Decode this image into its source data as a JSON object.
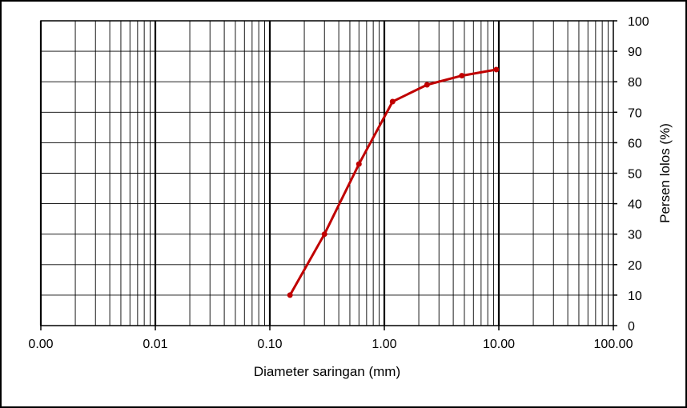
{
  "chart_data": {
    "type": "line",
    "title": "",
    "xlabel": "Diameter saringan (mm)",
    "ylabel": "Persen lolos (%)",
    "x_scale": "log",
    "xlim": [
      0.001,
      100
    ],
    "ylim": [
      0,
      100
    ],
    "x_tick_labels": [
      "0.00",
      "0.01",
      "0.10",
      "1.00",
      "10.00",
      "100.00"
    ],
    "y_tick_labels": [
      "0",
      "10",
      "20",
      "30",
      "40",
      "50",
      "60",
      "70",
      "80",
      "90",
      "100"
    ],
    "y_axis_side": "right",
    "grid": true,
    "legend": "none",
    "series": [
      {
        "x": [
          0.15,
          0.3,
          0.6,
          1.18,
          2.36,
          4.75,
          9.5
        ],
        "y": [
          10,
          30,
          53,
          73.5,
          79,
          82,
          84
        ],
        "color": "#c00000"
      }
    ]
  }
}
